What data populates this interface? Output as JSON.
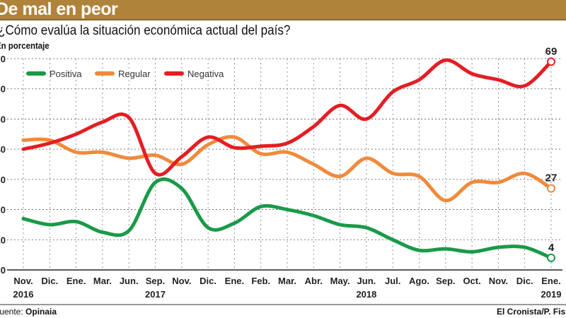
{
  "header": {
    "title": "De mal en peor",
    "question": "¿Cómo evalúa la situación económica actual del país?",
    "unit": "En porcentaje"
  },
  "footer": {
    "source_label": "Fuente: ",
    "source": "Opinaia",
    "credit": "El Cronista/P. Fisicaro"
  },
  "chart_data": {
    "type": "line",
    "title": "De mal en peor",
    "subtitle": "¿Cómo evalúa la situación económica actual del país?",
    "ylabel": "En porcentaje",
    "ylim": [
      0,
      70
    ],
    "yticks": [
      0,
      10,
      20,
      30,
      40,
      50,
      60,
      70
    ],
    "grid": true,
    "legend": "top-left",
    "categories": [
      "Nov.",
      "Dic.",
      "Ene.",
      "Mar.",
      "Jun.",
      "Sep.",
      "Nov.",
      "Dic.",
      "Ene.",
      "Feb.",
      "Mar.",
      "Abr.",
      "May.",
      "Jun.",
      "Jul.",
      "Ago.",
      "Sep.",
      "Oct.",
      "Nov.",
      "Dic.",
      "Ene."
    ],
    "year_labels": [
      {
        "index": 0,
        "label": "2016"
      },
      {
        "index": 5,
        "label": "2017"
      },
      {
        "index": 13,
        "label": "2018"
      },
      {
        "index": 20,
        "label": "2019"
      }
    ],
    "series": [
      {
        "name": "Positiva",
        "color": "#1a9a48",
        "values": [
          17,
          15,
          16,
          12.5,
          13,
          29,
          27,
          14,
          15.5,
          21,
          20,
          18,
          15,
          14,
          10,
          6.5,
          7,
          6,
          7.5,
          7.5,
          4
        ],
        "end_label": "4"
      },
      {
        "name": "Regular",
        "color": "#f08a3c",
        "values": [
          43,
          43,
          39,
          39,
          37,
          38,
          35,
          41.5,
          44,
          38.5,
          39,
          35,
          31,
          37,
          32,
          31,
          23,
          29,
          29,
          32,
          27
        ],
        "end_label": "27"
      },
      {
        "name": "Negativa",
        "color": "#e31e24",
        "values": [
          40,
          42,
          45,
          49,
          50.5,
          32,
          37.5,
          44,
          40.5,
          41,
          42,
          47.5,
          54.5,
          50,
          59,
          63,
          69.5,
          65,
          63,
          61,
          69
        ],
        "end_label": "69"
      }
    ]
  }
}
